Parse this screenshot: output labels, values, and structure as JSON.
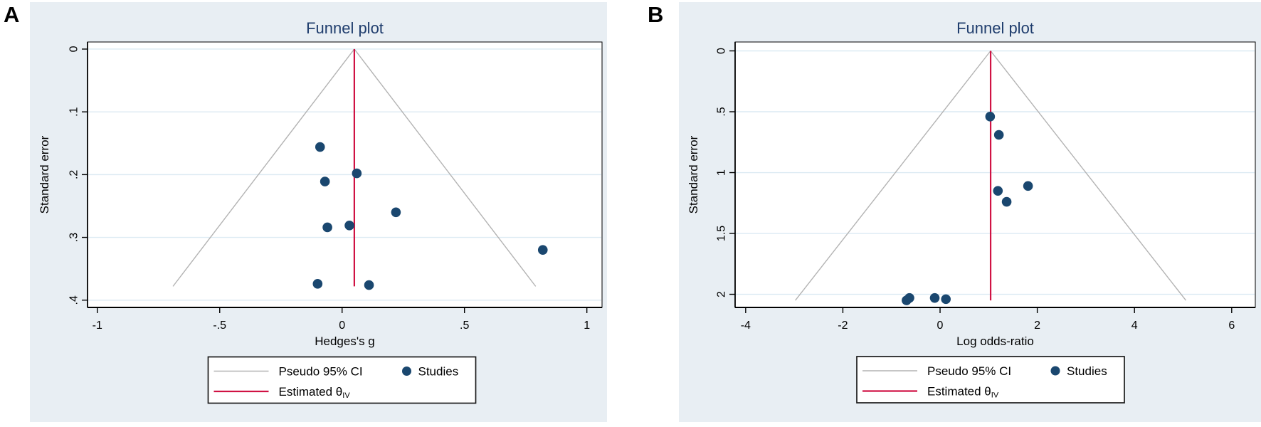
{
  "figure": {
    "panel_labels": [
      "A",
      "B"
    ],
    "legend": {
      "ci_label": "Pseudo 95% CI",
      "studies_label": "Studies",
      "estimated_label": "Estimated θ",
      "estimated_sub": "IV"
    },
    "colors": {
      "panel_bg": "#e8eef3",
      "plot_bg": "#ffffff",
      "gridline": "#dceaf3",
      "axis": "#000000",
      "funnel_ci": "#b3b3b3",
      "estimate_line": "#d01243",
      "marker": "#1a476f",
      "title": "#1f3d6d",
      "text": "#000000",
      "legend_border": "#1a1a1a"
    }
  },
  "chart_data": [
    {
      "type": "scatter",
      "panel": "A",
      "title": "Funnel plot",
      "xlabel": "Hedges's g",
      "ylabel": "Standard error",
      "x_ticks": [
        -1,
        -0.5,
        0,
        0.5,
        1
      ],
      "x_tick_labels": [
        "-1",
        "-.5",
        "0",
        ".5",
        "1"
      ],
      "y_ticks": [
        0,
        0.1,
        0.2,
        0.3,
        0.4
      ],
      "y_tick_labels": [
        "0",
        ".1",
        ".2",
        ".3",
        ".4"
      ],
      "xlim": [
        -1.04,
        1.062
      ],
      "ylim_se": [
        -0.0113,
        0.4116
      ],
      "y_axis_inverted": true,
      "grid": true,
      "legend_position": "bottom",
      "estimated_theta": 0.05,
      "funnel_max_se": 0.378,
      "ci_multiplier": 1.96,
      "points": [
        {
          "x": -0.09,
          "se": 0.156
        },
        {
          "x": 0.06,
          "se": 0.198
        },
        {
          "x": -0.07,
          "se": 0.211
        },
        {
          "x": 0.22,
          "se": 0.26
        },
        {
          "x": -0.06,
          "se": 0.284
        },
        {
          "x": 0.03,
          "se": 0.281
        },
        {
          "x": -0.1,
          "se": 0.374
        },
        {
          "x": 0.11,
          "se": 0.376
        },
        {
          "x": 0.82,
          "se": 0.32
        }
      ]
    },
    {
      "type": "scatter",
      "panel": "B",
      "title": "Funnel plot",
      "xlabel": "Log odds-ratio",
      "ylabel": "Standard error",
      "x_ticks": [
        -4,
        -2,
        0,
        2,
        4,
        6
      ],
      "x_tick_labels": [
        "-4",
        "-2",
        "0",
        "2",
        "4",
        "6"
      ],
      "y_ticks": [
        0,
        0.5,
        1,
        1.5,
        2
      ],
      "y_tick_labels": [
        "0",
        ".5",
        "1",
        "1.5",
        "2"
      ],
      "xlim": [
        -4.217,
        6.486
      ],
      "ylim_se": [
        -0.0731,
        2.108
      ],
      "y_axis_inverted": true,
      "grid": true,
      "legend_position": "bottom",
      "estimated_theta": 1.04,
      "funnel_max_se": 2.05,
      "ci_multiplier": 1.96,
      "points": [
        {
          "x": 1.03,
          "se": 0.54
        },
        {
          "x": 1.21,
          "se": 0.69
        },
        {
          "x": 1.81,
          "se": 1.11
        },
        {
          "x": 1.19,
          "se": 1.15
        },
        {
          "x": 1.37,
          "se": 1.24
        },
        {
          "x": -0.69,
          "se": 2.05
        },
        {
          "x": -0.63,
          "se": 2.03
        },
        {
          "x": -0.11,
          "se": 2.03
        },
        {
          "x": 0.12,
          "se": 2.04
        }
      ]
    }
  ]
}
